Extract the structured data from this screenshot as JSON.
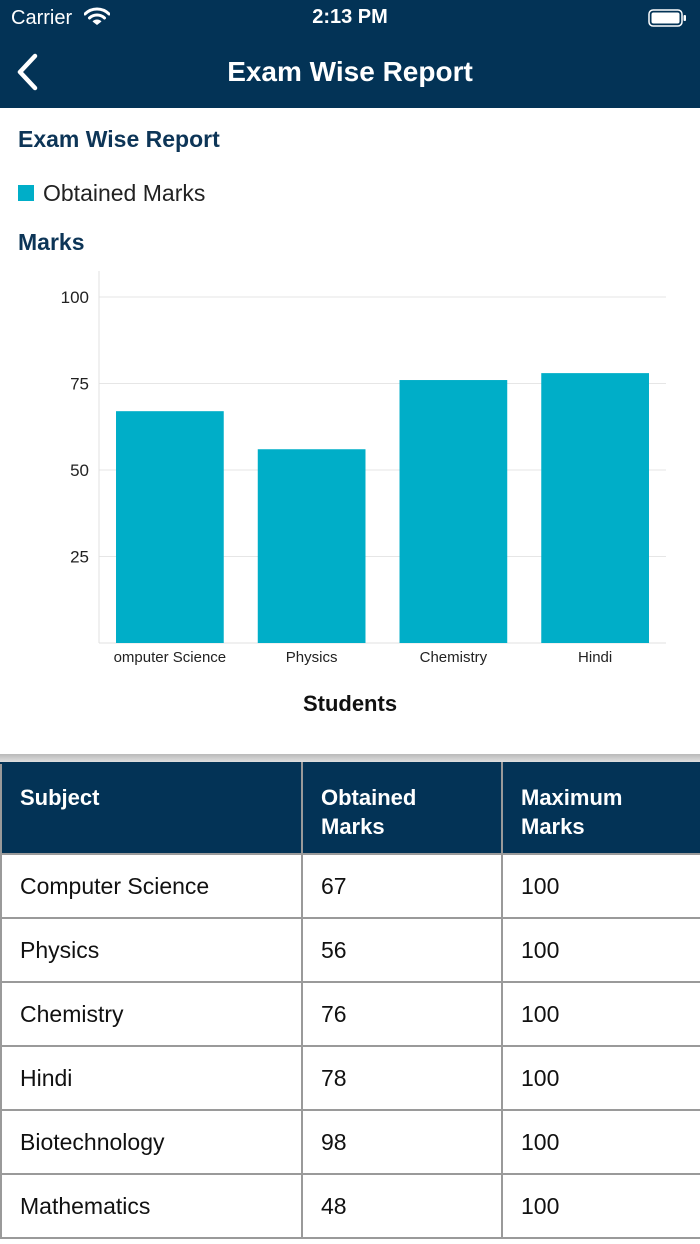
{
  "status_bar": {
    "carrier": "Carrier",
    "time": "2:13 PM"
  },
  "nav": {
    "title": "Exam Wise Report"
  },
  "report": {
    "title": "Exam Wise Report",
    "legend_label": "Obtained Marks",
    "y_axis_label": "Marks",
    "x_axis_label": "Students"
  },
  "chart_data": {
    "type": "bar",
    "categories": [
      "omputer Science",
      "Physics",
      "Chemistry",
      "Hindi"
    ],
    "series": [
      {
        "name": "Obtained Marks",
        "values": [
          67,
          56,
          76,
          78
        ]
      }
    ],
    "ylim": [
      0,
      100
    ],
    "yticks": [
      25,
      50,
      75,
      100
    ],
    "ylabel": "Marks",
    "xlabel": "Students",
    "title": "Exam Wise Report",
    "legend_placement": "top-left",
    "grid": true,
    "color": "#00aec8"
  },
  "table": {
    "headers": [
      "Subject",
      "Obtained Marks",
      "Maximum Marks"
    ],
    "rows": [
      [
        "Computer Science",
        "67",
        "100"
      ],
      [
        "Physics",
        "56",
        "100"
      ],
      [
        "Chemistry",
        "76",
        "100"
      ],
      [
        "Hindi",
        "78",
        "100"
      ],
      [
        "Biotechnology",
        "98",
        "100"
      ],
      [
        "Mathematics",
        "48",
        "100"
      ]
    ]
  },
  "colors": {
    "header_bg": "#033356",
    "accent": "#00aec8",
    "title_text": "#0d3557"
  }
}
